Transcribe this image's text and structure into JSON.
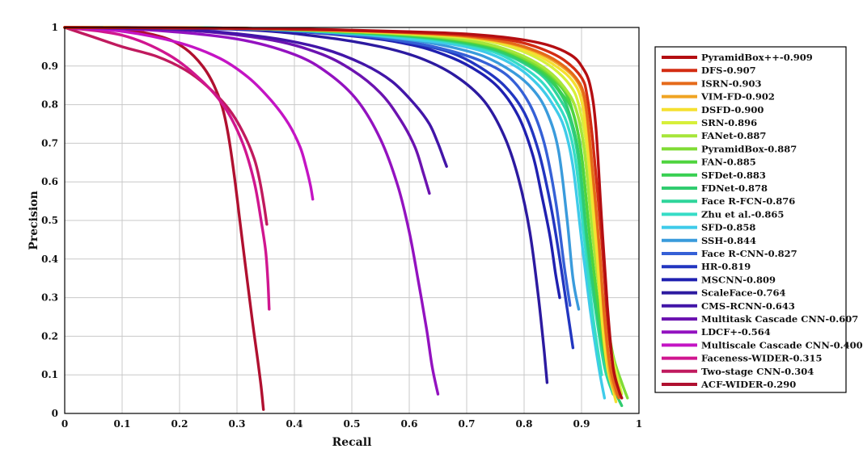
{
  "chart_data": {
    "type": "line",
    "title": "",
    "xlabel": "Recall",
    "ylabel": "Precision",
    "xlim": [
      0,
      1
    ],
    "ylim": [
      0,
      1
    ],
    "grid": true,
    "legend_position": "right",
    "xticks": [
      "0",
      "0.1",
      "0.2",
      "0.3",
      "0.4",
      "0.5",
      "0.6",
      "0.7",
      "0.8",
      "0.9",
      "1"
    ],
    "yticks": [
      "0",
      "0.1",
      "0.2",
      "0.3",
      "0.4",
      "0.5",
      "0.6",
      "0.7",
      "0.8",
      "0.9",
      "1"
    ],
    "series": [
      {
        "name": "PyramidBox++-0.909",
        "color": "#b40e12",
        "x": [
          0,
          0.3,
          0.5,
          0.62,
          0.7,
          0.78,
          0.84,
          0.88,
          0.9,
          0.915,
          0.925,
          0.935,
          0.945,
          0.955,
          0.965,
          0.97
        ],
        "y": [
          1,
          0.998,
          0.993,
          0.988,
          0.983,
          0.972,
          0.955,
          0.93,
          0.9,
          0.85,
          0.74,
          0.5,
          0.28,
          0.12,
          0.06,
          0.04
        ]
      },
      {
        "name": "DFS-0.907",
        "color": "#d32c12",
        "x": [
          0,
          0.3,
          0.5,
          0.62,
          0.7,
          0.78,
          0.83,
          0.87,
          0.9,
          0.91,
          0.92,
          0.935,
          0.945,
          0.955,
          0.965,
          0.97
        ],
        "y": [
          1,
          0.998,
          0.992,
          0.986,
          0.98,
          0.966,
          0.945,
          0.915,
          0.87,
          0.82,
          0.7,
          0.45,
          0.25,
          0.12,
          0.06,
          0.04
        ]
      },
      {
        "name": "ISRN-0.903",
        "color": "#e56a1a",
        "x": [
          0,
          0.3,
          0.5,
          0.62,
          0.7,
          0.77,
          0.82,
          0.86,
          0.89,
          0.905,
          0.915,
          0.93,
          0.94,
          0.95,
          0.96,
          0.965
        ],
        "y": [
          1,
          0.998,
          0.992,
          0.985,
          0.978,
          0.962,
          0.94,
          0.91,
          0.87,
          0.82,
          0.7,
          0.45,
          0.25,
          0.12,
          0.06,
          0.04
        ]
      },
      {
        "name": "VIM-FD-0.902",
        "color": "#f0a422",
        "x": [
          0,
          0.3,
          0.5,
          0.62,
          0.7,
          0.77,
          0.82,
          0.86,
          0.89,
          0.905,
          0.915,
          0.93,
          0.94,
          0.95,
          0.96
        ],
        "y": [
          1,
          0.998,
          0.991,
          0.984,
          0.976,
          0.96,
          0.937,
          0.905,
          0.865,
          0.81,
          0.69,
          0.44,
          0.24,
          0.1,
          0.05
        ]
      },
      {
        "name": "DSFD-0.900",
        "color": "#f5e030",
        "x": [
          0,
          0.3,
          0.5,
          0.62,
          0.7,
          0.76,
          0.82,
          0.86,
          0.885,
          0.9,
          0.91,
          0.925,
          0.935,
          0.945,
          0.955,
          0.96
        ],
        "y": [
          1,
          0.998,
          0.99,
          0.983,
          0.975,
          0.96,
          0.93,
          0.895,
          0.86,
          0.81,
          0.7,
          0.45,
          0.25,
          0.12,
          0.06,
          0.03
        ]
      },
      {
        "name": "SRN-0.896",
        "color": "#d7ef3a",
        "x": [
          0,
          0.3,
          0.5,
          0.62,
          0.7,
          0.76,
          0.81,
          0.85,
          0.88,
          0.895,
          0.91,
          0.925,
          0.94,
          0.955,
          0.965,
          0.97
        ],
        "y": [
          1,
          0.998,
          0.99,
          0.982,
          0.973,
          0.957,
          0.93,
          0.895,
          0.85,
          0.8,
          0.68,
          0.44,
          0.26,
          0.14,
          0.08,
          0.05
        ]
      },
      {
        "name": "FANet-0.887",
        "color": "#a6e63a",
        "x": [
          0,
          0.3,
          0.5,
          0.62,
          0.69,
          0.75,
          0.8,
          0.84,
          0.87,
          0.89,
          0.905,
          0.92,
          0.935,
          0.95,
          0.96
        ],
        "y": [
          1,
          0.998,
          0.99,
          0.98,
          0.97,
          0.952,
          0.925,
          0.89,
          0.845,
          0.79,
          0.68,
          0.45,
          0.27,
          0.12,
          0.06
        ]
      },
      {
        "name": "PyramidBox-0.887",
        "color": "#7fdc35",
        "x": [
          0,
          0.3,
          0.5,
          0.62,
          0.69,
          0.75,
          0.8,
          0.84,
          0.87,
          0.89,
          0.905,
          0.92,
          0.94,
          0.955,
          0.97,
          0.98
        ],
        "y": [
          1,
          0.998,
          0.989,
          0.979,
          0.968,
          0.95,
          0.92,
          0.885,
          0.84,
          0.79,
          0.68,
          0.46,
          0.28,
          0.15,
          0.08,
          0.04
        ]
      },
      {
        "name": "FAN-0.885",
        "color": "#4ed43d",
        "x": [
          0,
          0.3,
          0.5,
          0.62,
          0.69,
          0.75,
          0.8,
          0.84,
          0.87,
          0.885,
          0.9,
          0.915,
          0.93,
          0.945,
          0.96
        ],
        "y": [
          1,
          0.998,
          0.989,
          0.978,
          0.966,
          0.948,
          0.918,
          0.88,
          0.835,
          0.78,
          0.67,
          0.45,
          0.27,
          0.12,
          0.05
        ]
      },
      {
        "name": "SFDet-0.883",
        "color": "#38d052",
        "x": [
          0,
          0.3,
          0.5,
          0.62,
          0.69,
          0.75,
          0.8,
          0.84,
          0.865,
          0.885,
          0.9,
          0.915,
          0.93,
          0.945,
          0.96
        ],
        "y": [
          1,
          0.998,
          0.988,
          0.977,
          0.965,
          0.946,
          0.915,
          0.875,
          0.83,
          0.78,
          0.67,
          0.45,
          0.27,
          0.12,
          0.05
        ]
      },
      {
        "name": "FDNet-0.878",
        "color": "#30cc6f",
        "x": [
          0,
          0.3,
          0.5,
          0.62,
          0.69,
          0.75,
          0.8,
          0.84,
          0.865,
          0.88,
          0.895,
          0.91,
          0.925,
          0.94,
          0.955,
          0.97
        ],
        "y": [
          1,
          0.998,
          0.987,
          0.975,
          0.962,
          0.942,
          0.91,
          0.87,
          0.825,
          0.77,
          0.67,
          0.45,
          0.28,
          0.15,
          0.07,
          0.02
        ]
      },
      {
        "name": "Face R-FCN-0.876",
        "color": "#2fd59b",
        "x": [
          0,
          0.3,
          0.5,
          0.62,
          0.69,
          0.75,
          0.8,
          0.835,
          0.86,
          0.88,
          0.895,
          0.91,
          0.925,
          0.94,
          0.955
        ],
        "y": [
          1,
          0.998,
          0.986,
          0.974,
          0.96,
          0.94,
          0.907,
          0.87,
          0.82,
          0.76,
          0.65,
          0.43,
          0.26,
          0.12,
          0.05
        ]
      },
      {
        "name": "Zhu et al.-0.865",
        "color": "#36dcc6",
        "x": [
          0,
          0.3,
          0.5,
          0.62,
          0.69,
          0.75,
          0.795,
          0.83,
          0.855,
          0.875,
          0.89,
          0.905,
          0.92,
          0.935
        ],
        "y": [
          1,
          0.998,
          0.985,
          0.972,
          0.957,
          0.935,
          0.9,
          0.86,
          0.81,
          0.75,
          0.65,
          0.45,
          0.25,
          0.1
        ]
      },
      {
        "name": "SFD-0.858",
        "color": "#3fcbea",
        "x": [
          0,
          0.3,
          0.5,
          0.6,
          0.68,
          0.74,
          0.79,
          0.825,
          0.85,
          0.87,
          0.885,
          0.9,
          0.915,
          0.93,
          0.94
        ],
        "y": [
          1,
          0.998,
          0.984,
          0.97,
          0.955,
          0.932,
          0.895,
          0.85,
          0.8,
          0.74,
          0.64,
          0.45,
          0.27,
          0.12,
          0.04
        ]
      },
      {
        "name": "SSH-0.844",
        "color": "#3a9bdc",
        "x": [
          0,
          0.3,
          0.5,
          0.6,
          0.67,
          0.73,
          0.78,
          0.815,
          0.84,
          0.86,
          0.875,
          0.885,
          0.895
        ],
        "y": [
          1,
          0.998,
          0.983,
          0.968,
          0.95,
          0.925,
          0.885,
          0.84,
          0.78,
          0.68,
          0.5,
          0.35,
          0.27
        ]
      },
      {
        "name": "Face R-CNN-0.827",
        "color": "#3560d6",
        "x": [
          0,
          0.3,
          0.5,
          0.6,
          0.67,
          0.73,
          0.775,
          0.81,
          0.835,
          0.855,
          0.87,
          0.88
        ],
        "y": [
          1,
          0.997,
          0.98,
          0.962,
          0.94,
          0.91,
          0.87,
          0.8,
          0.7,
          0.55,
          0.38,
          0.28
        ]
      },
      {
        "name": "HR-0.819",
        "color": "#2236c0",
        "x": [
          0,
          0.3,
          0.5,
          0.6,
          0.67,
          0.72,
          0.765,
          0.8,
          0.825,
          0.845,
          0.86,
          0.875,
          0.885
        ],
        "y": [
          1,
          0.997,
          0.98,
          0.96,
          0.936,
          0.9,
          0.85,
          0.78,
          0.68,
          0.55,
          0.42,
          0.27,
          0.17
        ]
      },
      {
        "name": "MSCNN-0.809",
        "color": "#1f20b0",
        "x": [
          0,
          0.3,
          0.5,
          0.6,
          0.66,
          0.71,
          0.755,
          0.79,
          0.815,
          0.83,
          0.845,
          0.855,
          0.862
        ],
        "y": [
          1,
          0.997,
          0.978,
          0.956,
          0.93,
          0.895,
          0.845,
          0.77,
          0.67,
          0.57,
          0.46,
          0.36,
          0.3
        ]
      },
      {
        "name": "ScaleFace-0.764",
        "color": "#2c1aa0",
        "x": [
          0,
          0.3,
          0.45,
          0.55,
          0.62,
          0.68,
          0.73,
          0.765,
          0.79,
          0.81,
          0.825,
          0.835,
          0.84
        ],
        "y": [
          1,
          0.995,
          0.975,
          0.95,
          0.92,
          0.875,
          0.81,
          0.72,
          0.61,
          0.47,
          0.3,
          0.16,
          0.08
        ]
      },
      {
        "name": "CMS-RCNN-0.643",
        "color": "#4215a8",
        "x": [
          0,
          0.2,
          0.35,
          0.45,
          0.52,
          0.57,
          0.61,
          0.635,
          0.65,
          0.66,
          0.665
        ],
        "y": [
          1,
          0.995,
          0.975,
          0.945,
          0.905,
          0.86,
          0.8,
          0.75,
          0.7,
          0.66,
          0.64
        ]
      },
      {
        "name": "Multitask Cascade CNN-0.607",
        "color": "#6c13b0",
        "x": [
          0,
          0.2,
          0.35,
          0.44,
          0.5,
          0.55,
          0.585,
          0.61,
          0.625,
          0.635
        ],
        "y": [
          1,
          0.994,
          0.97,
          0.935,
          0.89,
          0.83,
          0.76,
          0.69,
          0.62,
          0.57
        ]
      },
      {
        "name": "LDCF+-0.564",
        "color": "#9312c0",
        "x": [
          0,
          0.15,
          0.3,
          0.4,
          0.46,
          0.51,
          0.55,
          0.58,
          0.6,
          0.615,
          0.63,
          0.64,
          0.65
        ],
        "y": [
          1,
          0.993,
          0.97,
          0.93,
          0.88,
          0.81,
          0.71,
          0.59,
          0.47,
          0.35,
          0.22,
          0.12,
          0.05
        ]
      },
      {
        "name": "Multiscale Cascade CNN-0.400",
        "color": "#c414c4",
        "x": [
          0,
          0.1,
          0.2,
          0.27,
          0.32,
          0.36,
          0.39,
          0.41,
          0.42,
          0.428,
          0.432
        ],
        "y": [
          1,
          0.99,
          0.96,
          0.92,
          0.87,
          0.81,
          0.75,
          0.69,
          0.64,
          0.59,
          0.555
        ]
      },
      {
        "name": "Faceness-WIDER-0.315",
        "color": "#d0168f",
        "x": [
          0,
          0.1,
          0.18,
          0.24,
          0.28,
          0.31,
          0.33,
          0.342,
          0.35,
          0.354,
          0.356
        ],
        "y": [
          1,
          0.98,
          0.93,
          0.86,
          0.79,
          0.7,
          0.6,
          0.5,
          0.42,
          0.34,
          0.27
        ]
      },
      {
        "name": "Two-stage CNN-0.304",
        "color": "#c01a5e",
        "x": [
          0,
          0.05,
          0.1,
          0.16,
          0.21,
          0.25,
          0.285,
          0.31,
          0.33,
          0.34,
          0.347,
          0.352
        ],
        "y": [
          1,
          0.975,
          0.95,
          0.925,
          0.89,
          0.845,
          0.79,
          0.73,
          0.66,
          0.6,
          0.54,
          0.49
        ]
      },
      {
        "name": "ACF-WIDER-0.290",
        "color": "#b01030",
        "x": [
          0,
          0.1,
          0.17,
          0.21,
          0.24,
          0.26,
          0.275,
          0.285,
          0.295,
          0.305,
          0.315,
          0.325,
          0.335,
          0.342,
          0.346
        ],
        "y": [
          1,
          0.995,
          0.975,
          0.945,
          0.9,
          0.85,
          0.79,
          0.72,
          0.62,
          0.5,
          0.38,
          0.26,
          0.15,
          0.07,
          0.01
        ]
      }
    ]
  }
}
